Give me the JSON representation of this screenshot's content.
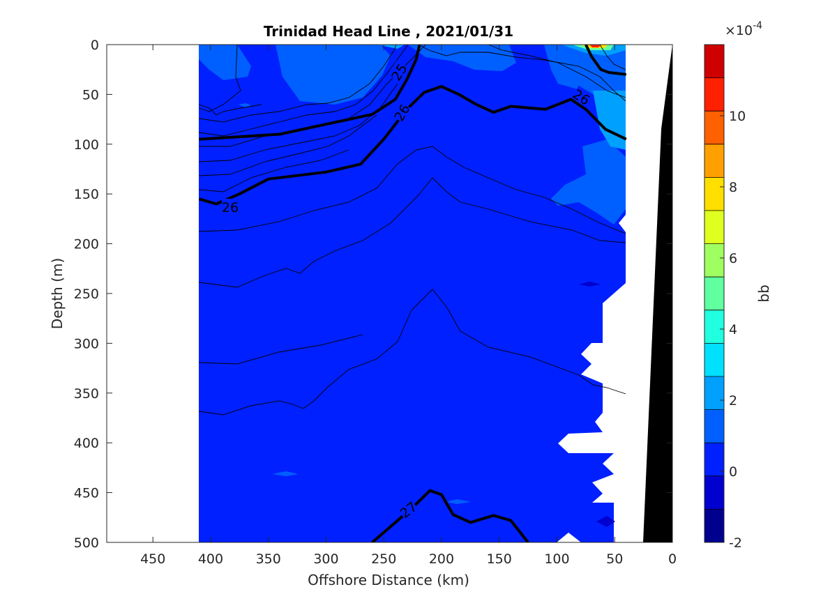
{
  "chart_data": {
    "type": "contour",
    "title": "Trinidad Head Line , 2021/01/31",
    "xlabel": "Offshore Distance (km)",
    "ylabel": "Depth (m)",
    "xlim": [
      490,
      0
    ],
    "x_reversed": true,
    "ylim": [
      0,
      500
    ],
    "y_reversed": true,
    "xticks": [
      "450",
      "400",
      "350",
      "300",
      "250",
      "200",
      "150",
      "100",
      "50",
      "0"
    ],
    "yticks": [
      "0",
      "50",
      "100",
      "150",
      "200",
      "250",
      "300",
      "350",
      "400",
      "450",
      "500"
    ],
    "colorbar": {
      "label": "bb",
      "exponent": "×10",
      "exponent_power": "-4",
      "range": [
        -2,
        12
      ],
      "ticks": [
        "-2",
        "0",
        "2",
        "4",
        "6",
        "8",
        "10"
      ],
      "colors": [
        "#00008f",
        "#0000cf",
        "#0020ff",
        "#0060ff",
        "#00a0ff",
        "#00e0ff",
        "#20ffdf",
        "#60ff9f",
        "#9fff60",
        "#dfff20",
        "#ffdf00",
        "#ffa000",
        "#ff6000",
        "#ff2000",
        "#cf0000"
      ]
    },
    "data_extent_km": [
      410,
      40
    ],
    "background_level_color": "#0020ff",
    "density_contours": [
      {
        "label": "25",
        "bold": true,
        "points": [
          [
            219,
            0
          ],
          [
            222,
            15
          ],
          [
            230,
            35
          ],
          [
            240,
            55
          ],
          [
            260,
            70
          ],
          [
            300,
            80
          ],
          [
            340,
            90
          ],
          [
            410,
            95
          ]
        ]
      },
      {
        "label": "26",
        "bold": true,
        "points": [
          [
            410,
            155
          ],
          [
            395,
            160
          ],
          [
            375,
            150
          ],
          [
            350,
            135
          ],
          [
            300,
            128
          ],
          [
            270,
            120
          ],
          [
            250,
            95
          ],
          [
            230,
            65
          ],
          [
            215,
            48
          ],
          [
            200,
            42
          ],
          [
            185,
            50
          ],
          [
            170,
            60
          ],
          [
            155,
            68
          ],
          [
            140,
            62
          ],
          [
            110,
            65
          ],
          [
            88,
            55
          ],
          [
            75,
            65
          ],
          [
            58,
            85
          ],
          [
            40,
            95
          ]
        ]
      },
      {
        "label": "26",
        "bold": true,
        "points": [
          [
            75,
            0
          ],
          [
            70,
            12
          ],
          [
            62,
            25
          ],
          [
            55,
            28
          ],
          [
            40,
            30
          ]
        ]
      },
      {
        "label": "27",
        "bold": true,
        "points": [
          [
            260,
            500
          ],
          [
            245,
            485
          ],
          [
            225,
            465
          ],
          [
            210,
            448
          ],
          [
            200,
            452
          ],
          [
            190,
            472
          ],
          [
            175,
            480
          ],
          [
            155,
            473
          ],
          [
            140,
            478
          ],
          [
            125,
            500
          ]
        ]
      }
    ],
    "annotations": [
      "25",
      "26",
      "26",
      "26",
      "27"
    ]
  }
}
